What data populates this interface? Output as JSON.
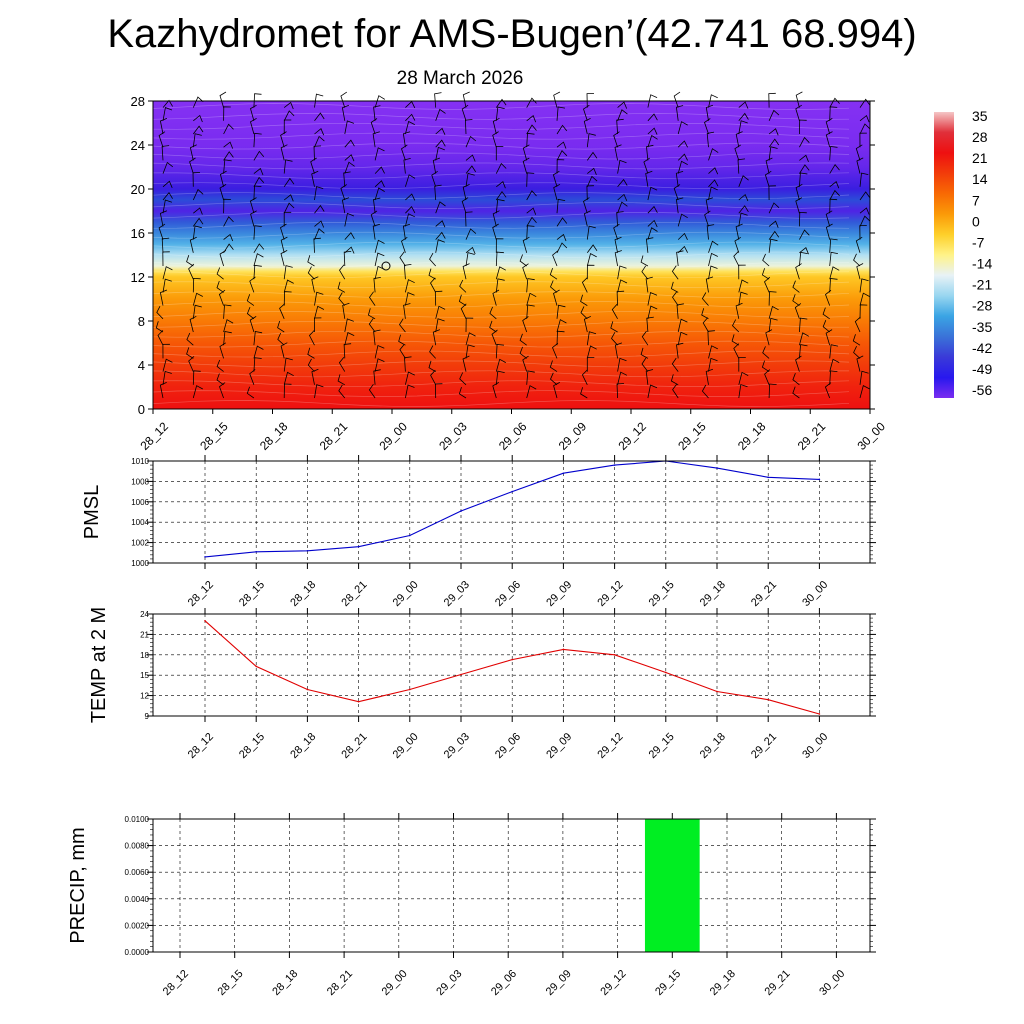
{
  "header": {
    "title": "Kazhydromet for AMS-Bugen’(42.741 68.994)",
    "subtitle": "28 March 2026"
  },
  "time_labels": [
    "28_12",
    "28_15",
    "28_18",
    "28_21",
    "29_00",
    "29_03",
    "29_06",
    "29_09",
    "29_12",
    "29_15",
    "29_18",
    "29_21",
    "30_00"
  ],
  "chart_data": [
    {
      "type": "heatmap",
      "name": "vertical-section",
      "x": [
        "28_12",
        "28_15",
        "28_18",
        "28_21",
        "29_00",
        "29_03",
        "29_06",
        "29_09",
        "29_12",
        "29_15",
        "29_18",
        "29_21",
        "30_00"
      ],
      "y_ticks": [
        0,
        4,
        8,
        12,
        16,
        20,
        24,
        28
      ],
      "ylim": [
        0,
        28
      ],
      "temperature_by_level": [
        {
          "level": 0,
          "value": 22
        },
        {
          "level": 2,
          "value": 20
        },
        {
          "level": 4,
          "value": 17
        },
        {
          "level": 6,
          "value": 14
        },
        {
          "level": 8,
          "value": 10
        },
        {
          "level": 10,
          "value": 6
        },
        {
          "level": 12,
          "value": 1
        },
        {
          "level": 12.5,
          "value": -4
        },
        {
          "level": 13,
          "value": -14
        },
        {
          "level": 14,
          "value": -20
        },
        {
          "level": 15,
          "value": -28
        },
        {
          "level": 16,
          "value": -36
        },
        {
          "level": 17,
          "value": -44
        },
        {
          "level": 18,
          "value": -52
        },
        {
          "level": 19,
          "value": -46
        },
        {
          "level": 20,
          "value": -50
        },
        {
          "level": 22,
          "value": -54
        },
        {
          "level": 24,
          "value": -56
        },
        {
          "level": 28,
          "value": -60
        }
      ],
      "marker": {
        "x": "29_00",
        "y": 13
      },
      "colorbar": {
        "labels": [
          "35",
          "28",
          "21",
          "14",
          "7",
          "0",
          "-7",
          "-14",
          "-21",
          "-28",
          "-35",
          "-42",
          "-49",
          "-56"
        ],
        "colors": [
          "#f5c6c6",
          "#e0303a",
          "#ee1010",
          "#f23c0a",
          "#f86a04",
          "#fb9a08",
          "#fed02a",
          "#fff388",
          "#e8f2f6",
          "#98d6f0",
          "#3aa4e4",
          "#3a72d8",
          "#3a3ad8",
          "#2818ee",
          "#7a2cf0"
        ]
      }
    },
    {
      "type": "line",
      "name": "pmsl",
      "ylabel": "PMSL",
      "x": [
        "28_12",
        "28_15",
        "28_18",
        "28_21",
        "29_00",
        "29_03",
        "29_06",
        "29_09",
        "29_12",
        "29_15",
        "29_18",
        "29_21",
        "30_00"
      ],
      "values": [
        1000.6,
        1001.1,
        1001.2,
        1001.6,
        1002.7,
        1005.1,
        1007.0,
        1008.8,
        1009.6,
        1010.0,
        1009.3,
        1008.4,
        1008.2
      ],
      "ylim": [
        1000,
        1010
      ],
      "y_ticks": [
        "1000",
        "1002",
        "1004",
        "1006",
        "1008",
        "1010"
      ],
      "color": "#0000cc"
    },
    {
      "type": "line",
      "name": "temp-2m",
      "ylabel": "TEMP at 2 M",
      "x": [
        "28_12",
        "28_15",
        "28_18",
        "28_21",
        "29_00",
        "29_03",
        "29_06",
        "29_09",
        "29_12",
        "29_15",
        "29_18",
        "29_21",
        "30_00"
      ],
      "values": [
        23.0,
        16.3,
        12.9,
        11.1,
        12.9,
        15.1,
        17.3,
        18.8,
        18.0,
        15.4,
        12.6,
        11.4,
        9.3
      ],
      "ylim": [
        9,
        24
      ],
      "y_ticks": [
        "9",
        "12",
        "15",
        "18",
        "21",
        "24"
      ],
      "color": "#e00000"
    },
    {
      "type": "bar",
      "name": "precip",
      "ylabel": "PRECIP, mm",
      "x": [
        "28_12",
        "28_15",
        "28_18",
        "28_21",
        "29_00",
        "29_03",
        "29_06",
        "29_09",
        "29_12",
        "29_15",
        "29_18",
        "29_21",
        "30_00"
      ],
      "values": [
        0,
        0,
        0,
        0,
        0,
        0,
        0,
        0,
        0,
        0.01,
        0,
        0,
        0
      ],
      "ylim": [
        0,
        0.01
      ],
      "y_ticks": [
        "0.0000",
        "0.0020",
        "0.0040",
        "0.0060",
        "0.0080",
        "0.0100"
      ],
      "color": "#00ee22"
    }
  ]
}
